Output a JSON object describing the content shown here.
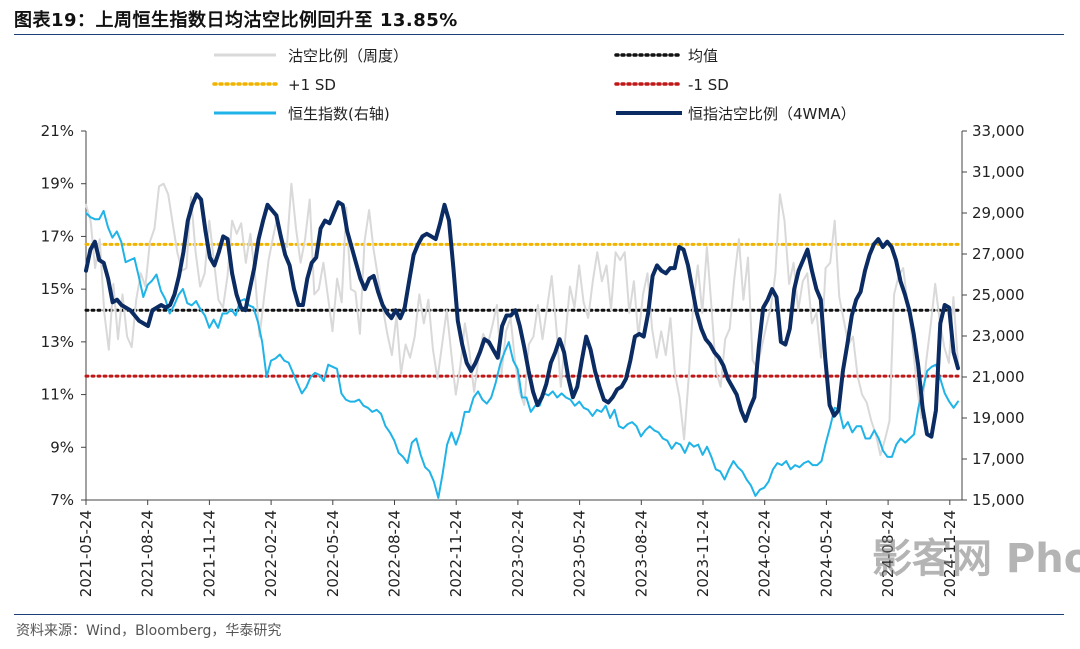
{
  "title": "图表19：上周恒生指数日均沽空比例回升至 13.85%",
  "source": "资料来源：Wind，Bloomberg，华泰研究",
  "watermark": "影客网 Phoer.com",
  "chart_data": {
    "type": "line",
    "title": "图表19：上周恒生指数日均沽空比例回升至 13.85%",
    "x_tick_labels": [
      "2021-05-24",
      "2021-08-24",
      "2021-11-24",
      "2022-02-24",
      "2022-05-24",
      "2022-08-24",
      "2022-11-24",
      "2023-02-24",
      "2023-05-24",
      "2023-08-24",
      "2023-11-24",
      "2024-02-24",
      "2024-05-24",
      "2024-08-24",
      "2024-11-24"
    ],
    "y_left_ticks": [
      "7%",
      "9%",
      "11%",
      "13%",
      "15%",
      "17%",
      "19%",
      "21%"
    ],
    "y_left_range": [
      7,
      21
    ],
    "y_right_ticks": [
      "15,000",
      "17,000",
      "19,000",
      "21,000",
      "23,000",
      "25,000",
      "27,000",
      "29,000",
      "31,000",
      "33,000"
    ],
    "y_right_range": [
      15000,
      33000
    ],
    "legend": [
      "沽空比例（周度）",
      "均值",
      "+1 SD",
      "-1 SD",
      "恒生指数(右轴)",
      "恒指沽空比例（4WMA）"
    ],
    "reference_lines": {
      "mean": 14.2,
      "plus_1sd": 16.7,
      "minus_1sd": 11.7
    },
    "series": [
      {
        "name": "沽空比例（周度）",
        "axis": "left",
        "color": "#d9d9d9",
        "width": 2,
        "values": [
          18.2,
          17.6,
          15.8,
          16.9,
          14.1,
          12.7,
          15.2,
          13.1,
          14.8,
          13.2,
          12.8,
          14.6,
          15.6,
          15.1,
          16.8,
          17.3,
          18.9,
          19.0,
          18.6,
          17.5,
          16.4,
          15.7,
          15.8,
          18.5,
          16.4,
          15.1,
          15.6,
          17.6,
          16.1,
          14.6,
          14.3,
          15.5,
          17.6,
          17.1,
          17.5,
          16.0,
          17.1,
          15.6,
          13.2,
          14.7,
          16.1,
          17.0,
          17.8,
          16.7,
          16.6,
          19.0,
          17.3,
          16.0,
          16.9,
          18.4,
          14.8,
          15.0,
          16.0,
          14.7,
          13.4,
          15.4,
          14.5,
          18.1,
          15.0,
          14.9,
          13.3,
          16.8,
          18.0,
          16.5,
          15.4,
          14.3,
          13.3,
          12.5,
          14.0,
          11.8,
          12.9,
          12.4,
          13.2,
          14.8,
          13.7,
          14.6,
          12.7,
          11.6,
          12.9,
          14.2,
          12.6,
          11.0,
          12.1,
          13.7,
          12.6,
          11.1,
          12.4,
          13.3,
          12.9,
          13.6,
          14.4,
          11.8,
          13.4,
          13.9,
          12.2,
          11.1,
          10.6,
          12.9,
          13.2,
          14.4,
          13.1,
          14.3,
          15.5,
          13.6,
          11.3,
          13.2,
          15.1,
          14.3,
          15.9,
          14.5,
          13.9,
          15.3,
          16.4,
          15.3,
          15.9,
          14.2,
          16.4,
          16.1,
          16.4,
          14.1,
          15.3,
          13.2,
          14.8,
          15.6,
          13.5,
          12.4,
          13.4,
          12.5,
          13.9,
          11.8,
          10.9,
          9.3,
          11.6,
          14.4,
          15.9,
          14.1,
          16.6,
          14.3,
          11.9,
          11.3,
          13.1,
          13.5,
          15.4,
          16.9,
          14.6,
          16.2,
          12.3,
          12.0,
          12.8,
          13.6,
          14.3,
          15.6,
          18.6,
          17.6,
          15.2,
          16.0,
          14.2,
          15.3,
          15.6,
          13.7,
          14.1,
          12.4,
          15.8,
          16.0,
          17.6,
          14.7,
          13.8,
          12.9,
          13.2,
          11.7,
          11.0,
          10.7,
          10.0,
          9.5,
          8.7,
          9.3,
          10.0,
          14.8,
          15.5,
          15.8,
          14.4,
          13.1,
          11.3,
          10.1,
          12.2,
          13.6,
          15.2,
          13.8,
          12.8,
          12.2,
          14.7,
          12.2
        ],
        "values_note": ""
      },
      {
        "name": "恒生指数(右轴)",
        "axis": "right",
        "color": "#1fb3e8",
        "width": 2,
        "values": [
          29000,
          28800,
          28700,
          28700,
          29100,
          28300,
          27800,
          28100,
          27600,
          26600,
          26700,
          26800,
          25900,
          24900,
          25500,
          25700,
          26000,
          25200,
          24800,
          24100,
          24500,
          25000,
          25300,
          24600,
          24500,
          24700,
          24300,
          24000,
          23400,
          23800,
          23400,
          24100,
          24100,
          24300,
          24000,
          24700,
          24800,
          24500,
          24400,
          23700,
          22700,
          21000,
          21800,
          21900,
          22100,
          21800,
          21700,
          21200,
          20700,
          20200,
          20500,
          21000,
          21200,
          21100,
          20800,
          21600,
          21500,
          21400,
          20200,
          19900,
          19800,
          19800,
          19900,
          19600,
          19500,
          19300,
          19400,
          19200,
          18600,
          18300,
          17900,
          17300,
          17100,
          16800,
          17800,
          18000,
          17200,
          16600,
          16400,
          15900,
          15100,
          16300,
          17700,
          18300,
          17700,
          18300,
          19300,
          19300,
          20000,
          20300,
          19900,
          19700,
          20000,
          20700,
          21600,
          22200,
          22700,
          21800,
          21400,
          20000,
          20000,
          19300,
          19600,
          19600,
          20200,
          20100,
          20300,
          20000,
          20200,
          20000,
          19900,
          19600,
          19800,
          19500,
          19400,
          19100,
          19400,
          19300,
          19600,
          19000,
          19400,
          18600,
          18500,
          18700,
          18800,
          18600,
          18100,
          18400,
          18600,
          18400,
          18300,
          18000,
          17900,
          17500,
          17800,
          17700,
          17300,
          17800,
          17600,
          17700,
          17200,
          17600,
          17100,
          16500,
          16400,
          16000,
          16500,
          16900,
          16600,
          16400,
          16000,
          15700,
          15200,
          15500,
          15600,
          15900,
          16500,
          16800,
          16700,
          16900,
          16500,
          16700,
          16600,
          16800,
          16900,
          16700,
          16700,
          16900,
          17800,
          18600,
          19500,
          19400,
          18500,
          18800,
          18300,
          18600,
          18600,
          18000,
          18000,
          18400,
          18000,
          17400,
          17100,
          17100,
          17700,
          18000,
          17800,
          18000,
          18200,
          19500,
          20400,
          21300,
          21500,
          21600,
          20900,
          20200,
          19800,
          19500,
          19800
        ],
        "values_note": ""
      },
      {
        "name": "恒指沽空比例（4WMA）",
        "axis": "left",
        "color": "#0b2b63",
        "width": 4,
        "values": [
          15.7,
          16.5,
          16.8,
          16.1,
          16.0,
          15.4,
          14.5,
          14.6,
          14.4,
          14.3,
          14.2,
          14.0,
          13.8,
          13.7,
          13.6,
          14.2,
          14.3,
          14.4,
          14.3,
          14.4,
          14.8,
          15.5,
          16.4,
          17.6,
          18.2,
          18.6,
          18.4,
          17.2,
          16.2,
          15.9,
          16.4,
          17.0,
          16.9,
          15.6,
          14.8,
          14.3,
          14.2,
          15.0,
          15.8,
          16.9,
          17.6,
          18.2,
          18.0,
          17.8,
          17.0,
          16.3,
          15.9,
          15.0,
          14.4,
          14.4,
          15.4,
          16.0,
          16.2,
          17.3,
          17.6,
          17.5,
          17.9,
          18.3,
          18.2,
          17.2,
          16.6,
          16.0,
          15.4,
          15.0,
          15.4,
          15.5,
          14.9,
          14.4,
          14.1,
          13.9,
          14.2,
          13.9,
          14.3,
          15.3,
          16.3,
          16.7,
          17.0,
          17.1,
          17.0,
          16.9,
          17.5,
          18.2,
          17.6,
          15.8,
          13.8,
          12.9,
          12.2,
          11.9,
          12.2,
          12.6,
          13.1,
          13.0,
          12.7,
          12.4,
          13.6,
          14.0,
          14.0,
          14.2,
          13.6,
          12.8,
          11.9,
          11.1,
          10.6,
          10.9,
          11.4,
          12.2,
          12.6,
          13.1,
          12.6,
          11.6,
          10.9,
          11.3,
          12.3,
          13.2,
          12.7,
          11.9,
          11.3,
          10.8,
          10.7,
          10.9,
          11.2,
          11.3,
          11.6,
          12.3,
          13.2,
          13.3,
          13.2,
          14.1,
          15.5,
          15.9,
          15.7,
          15.6,
          15.8,
          15.8,
          16.6,
          16.5,
          15.9,
          15.0,
          14.1,
          13.5,
          13.1,
          12.9,
          12.6,
          12.4,
          12.1,
          11.6,
          11.3,
          11.0,
          10.4,
          10.0,
          10.5,
          10.9,
          12.8,
          14.3,
          14.6,
          15.0,
          14.7,
          13.0,
          12.9,
          13.5,
          15.0,
          15.7,
          16.1,
          16.5,
          15.7,
          15.0,
          14.6,
          12.4,
          10.6,
          10.2,
          10.4,
          11.9,
          12.9,
          14.0,
          14.6,
          14.9,
          15.7,
          16.3,
          16.7,
          16.9,
          16.6,
          16.8,
          16.6,
          16.1,
          15.3,
          14.8,
          14.2,
          13.3,
          12.1,
          10.5,
          9.5,
          9.4,
          10.4,
          13.7,
          14.4,
          14.3,
          12.6,
          12.0
        ],
        "values_note": ""
      }
    ]
  }
}
